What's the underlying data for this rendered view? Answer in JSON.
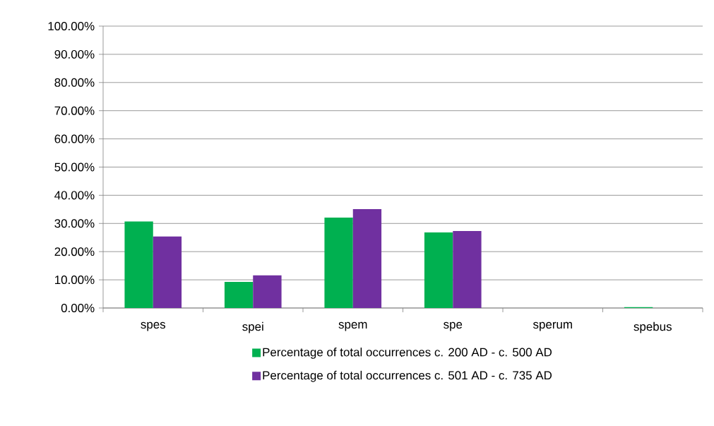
{
  "chart_data": {
    "type": "bar",
    "categories": [
      "spes",
      "spei",
      "spem",
      "spe",
      "sperum",
      "spebus"
    ],
    "series": [
      {
        "name": "Percentage of total occurrences c. 200 AD - c. 500 AD",
        "color": "#00b050",
        "values": [
          30.7,
          9.3,
          32.1,
          26.8,
          0,
          0.3
        ]
      },
      {
        "name": "Percentage of total occurrences c. 501 AD - c. 735 AD",
        "color": "#7030a0",
        "values": [
          25.4,
          11.6,
          35.1,
          27.3,
          0,
          0
        ]
      }
    ],
    "ylim": [
      0,
      100
    ],
    "yticks": [
      {
        "value": 0,
        "label": "0.00%"
      },
      {
        "value": 10,
        "label": "10.00%"
      },
      {
        "value": 20,
        "label": "20.00%"
      },
      {
        "value": 30,
        "label": "30.00%"
      },
      {
        "value": 40,
        "label": "40.00%"
      },
      {
        "value": 50,
        "label": "50.00%"
      },
      {
        "value": 60,
        "label": "60.00%"
      },
      {
        "value": 70,
        "label": "70.00%"
      },
      {
        "value": 80,
        "label": "80.00%"
      },
      {
        "value": 90,
        "label": "90.00%"
      },
      {
        "value": 100,
        "label": "100.00%"
      }
    ],
    "grid": "y",
    "legend": "bottom"
  }
}
